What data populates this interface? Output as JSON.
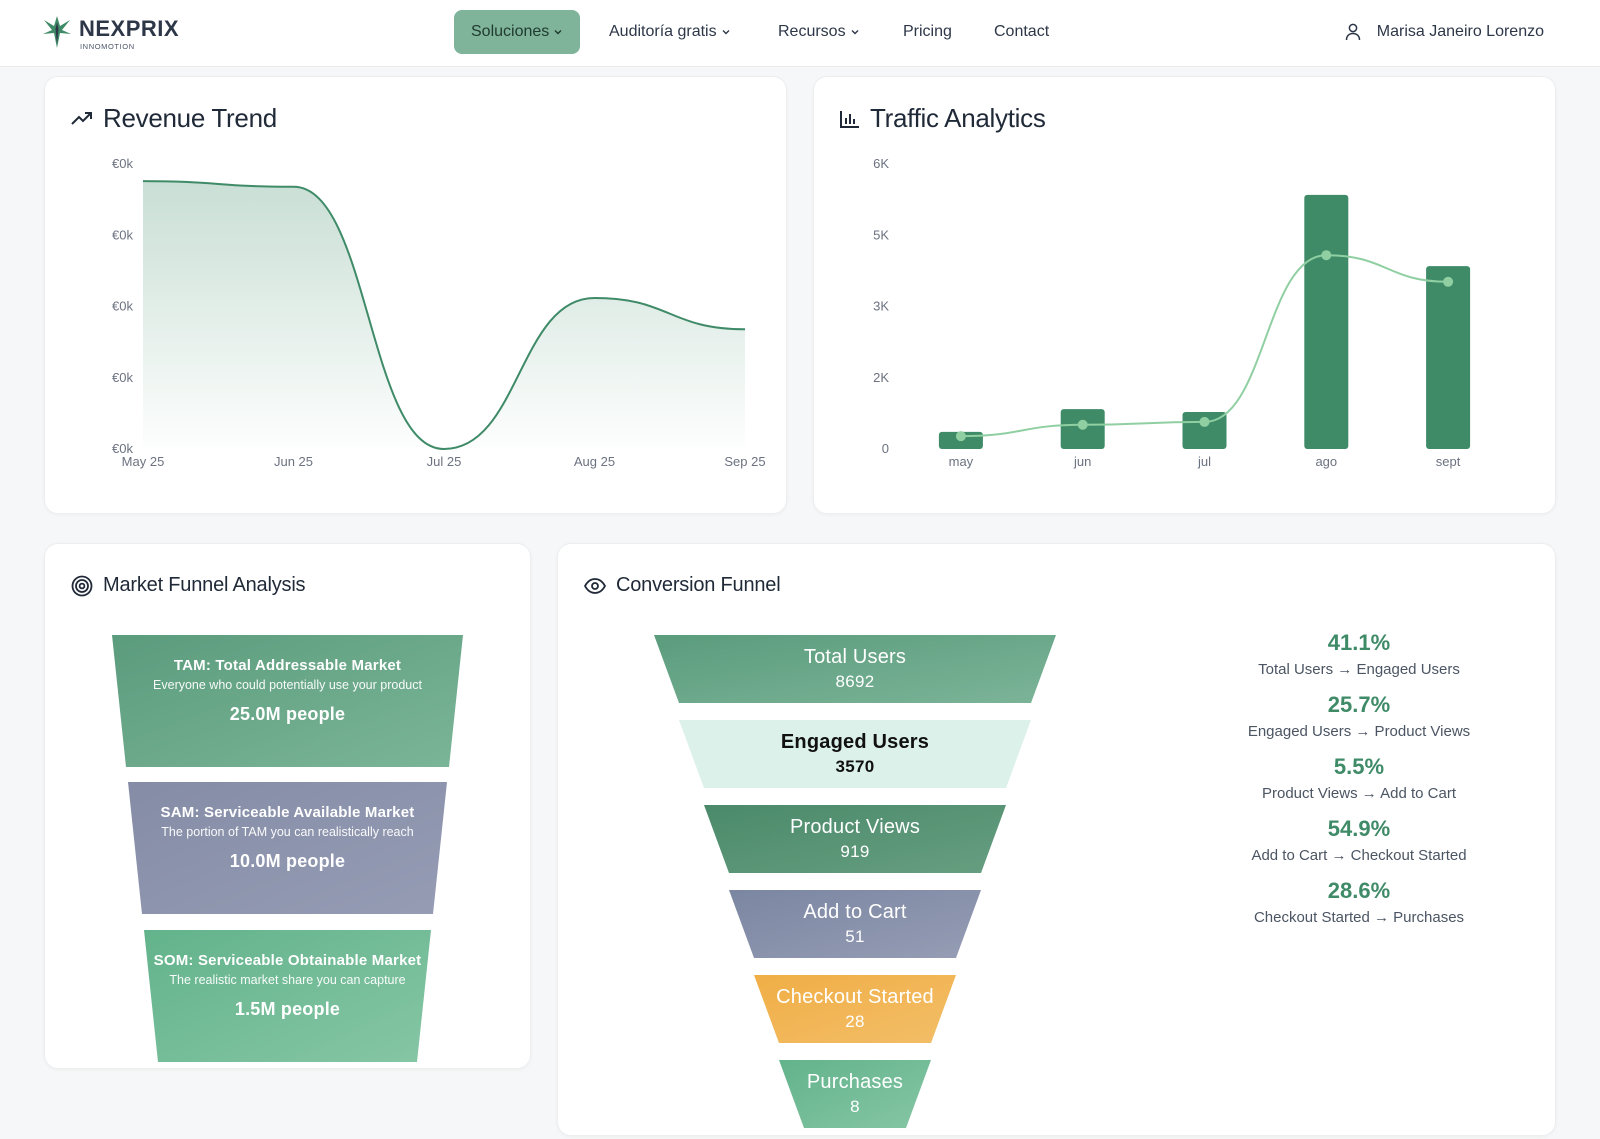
{
  "nav": {
    "brand": "NEXPRIX",
    "brand_sub": "INNOMOTION",
    "items": [
      {
        "label": "Soluciones",
        "has_dropdown": true,
        "active": true
      },
      {
        "label": "Auditoría gratis",
        "has_dropdown": true,
        "active": false
      },
      {
        "label": "Recursos",
        "has_dropdown": true,
        "active": false
      },
      {
        "label": "Pricing",
        "has_dropdown": false,
        "active": false
      },
      {
        "label": "Contact",
        "has_dropdown": false,
        "active": false
      }
    ],
    "user_name": "Marisa Janeiro Lorenzo",
    "user_icon": "user-icon"
  },
  "revenue": {
    "title": "Revenue Trend",
    "icon": "trending-up-icon"
  },
  "traffic": {
    "title": "Traffic Analytics",
    "icon": "bar-chart-icon"
  },
  "chart_data": [
    {
      "type": "area",
      "title": "Revenue Trend",
      "x": [
        "May 25",
        "Jun 25",
        "Jul 25",
        "Aug 25",
        "Sep 25"
      ],
      "y_tick_labels": [
        "€0k",
        "€0k",
        "€0k",
        "€0k",
        "€0k"
      ],
      "values": [
        0.94,
        0.92,
        0.0,
        0.53,
        0.42
      ],
      "color": "#3f8b68"
    },
    {
      "type": "bar",
      "title": "Traffic Analytics",
      "categories": [
        "may",
        "jun",
        "jul",
        "ago",
        "sept"
      ],
      "y_tick_labels": [
        "0",
        "2K",
        "3K",
        "5K",
        "6K"
      ],
      "ylim": [
        0,
        6000
      ],
      "series": [
        {
          "type": "bar",
          "values": [
            360,
            840,
            780,
            5350,
            3850
          ],
          "color": "#3f8b68"
        },
        {
          "type": "line",
          "values": [
            270,
            510,
            570,
            4080,
            3520
          ],
          "color": "#8fcfa2"
        }
      ]
    }
  ],
  "market_funnel": {
    "title": "Market Funnel Analysis",
    "icon": "target-icon",
    "stages": [
      {
        "title": "TAM: Total Addressable Market",
        "desc": "Everyone who could potentially use your product",
        "value": "25.0M people",
        "color": "#5e9f80"
      },
      {
        "title": "SAM: Serviceable Available Market",
        "desc": "The portion of TAM you can realistically reach",
        "value": "10.0M people",
        "color": "#8890a8"
      },
      {
        "title": "SOM: Serviceable Obtainable Market",
        "desc": "The realistic market share you can capture",
        "value": "1.5M people",
        "color": "#6bb891"
      }
    ]
  },
  "conversion_funnel": {
    "title": "Conversion Funnel",
    "icon": "eye-icon",
    "stages": [
      {
        "label": "Total Users",
        "value": "8692",
        "color": "#5e9f80",
        "text_color": "#ffffff"
      },
      {
        "label": "Engaged Users",
        "value": "3570",
        "color": "#dcf1ea",
        "text_color": "#111111"
      },
      {
        "label": "Product Views",
        "value": "919",
        "color": "#4a8a6a",
        "text_color": "#ffffff"
      },
      {
        "label": "Add to Cart",
        "value": "51",
        "color": "#7f8aa4",
        "text_color": "#ffffff"
      },
      {
        "label": "Checkout Started",
        "value": "28",
        "color": "#f0b14e",
        "text_color": "#ffffff"
      },
      {
        "label": "Purchases",
        "value": "8",
        "color": "#6bb891",
        "text_color": "#ffffff"
      }
    ],
    "rates": [
      {
        "pct": "41.1%",
        "desc": "Total Users → Engaged Users"
      },
      {
        "pct": "25.7%",
        "desc": "Engaged Users → Product Views"
      },
      {
        "pct": "5.5%",
        "desc": "Product Views → Add to Cart"
      },
      {
        "pct": "54.9%",
        "desc": "Add to Cart → Checkout Started"
      },
      {
        "pct": "28.6%",
        "desc": "Checkout Started → Purchases"
      }
    ]
  }
}
